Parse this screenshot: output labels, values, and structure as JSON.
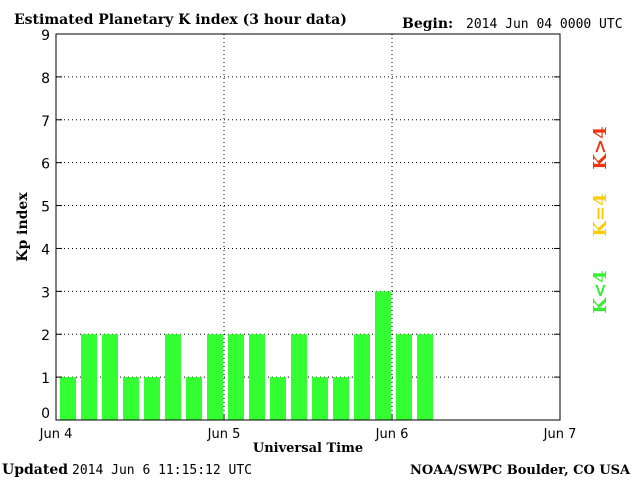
{
  "header": {
    "title": "Estimated Planetary K index (3 hour data)",
    "begin_label": "Begin:",
    "begin_value": "2014 Jun 04 0000 UTC"
  },
  "footer": {
    "updated_label": "Updated",
    "updated_value": "2014 Jun  6 11:15:12 UTC",
    "credit": "NOAA/SWPC Boulder, CO USA"
  },
  "legend": {
    "items": [
      {
        "label": "K<4",
        "color": "#33ee33"
      },
      {
        "label": "K=4",
        "color": "#ffcc00"
      },
      {
        "label": "K>4",
        "color": "#ee3311"
      }
    ]
  },
  "chart_data": {
    "type": "bar",
    "title": "Estimated Planetary K index (3 hour data)",
    "xlabel": "Universal Time",
    "ylabel": "Kp index",
    "ylim": [
      0,
      9
    ],
    "y_ticks": [
      "0",
      "1",
      "2",
      "3",
      "4",
      "5",
      "6",
      "7",
      "8",
      "9"
    ],
    "x_tick_labels": [
      "Jun 4",
      "Jun 5",
      "Jun 6",
      "Jun 7"
    ],
    "x_range_days": [
      0,
      3
    ],
    "interval_hours": 3,
    "grid": true,
    "bar_color": "#33ff33",
    "values": [
      1,
      2,
      2,
      1,
      1,
      2,
      1,
      2,
      2,
      2,
      1,
      2,
      1,
      1,
      2,
      3,
      2,
      2
    ]
  }
}
